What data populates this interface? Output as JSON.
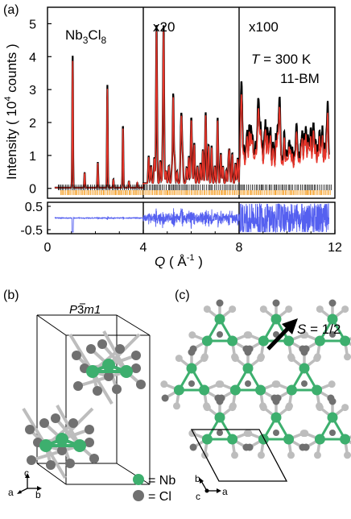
{
  "panel_a": {
    "label": "(a)",
    "segment_labels": [
      "Nb",
      "x20",
      "x100"
    ],
    "material_sub_3": "3",
    "material_cl": "Cl",
    "material_sub_8": "8",
    "annotation_t_symbol": "T",
    "annotation_t_value": " = 300 K",
    "annotation_beamline": "11-BM",
    "y_label_main": "Intensity ( 10",
    "y_label_exp": "4",
    "y_label_tail": " counts )",
    "x_label_q": "Q",
    "x_label_unit": " ( Å",
    "x_label_exp": "-1",
    "x_label_close": " )"
  },
  "panel_b": {
    "label": "(b)",
    "space_group_p": "P",
    "space_group_bar3": "3",
    "space_group_rest": "m1",
    "axis_c": "c",
    "axis_a": "a",
    "axis_b": "b",
    "legend_nb": "= Nb",
    "legend_cl": "= Cl"
  },
  "panel_c": {
    "label": "(c)",
    "spin_s": "S",
    "spin_value": " = 1/2",
    "axis_b": "b",
    "axis_c": "c",
    "axis_a": "a"
  },
  "colors": {
    "nb": "#3daf6e",
    "cl": "#707070",
    "cl_light": "#bdbdbd",
    "fit": "#e8352a",
    "difference": "#5560f0",
    "tick_black": "#000000",
    "tick_orange": "#f5a028"
  },
  "chart_data": {
    "type": "line",
    "title": "",
    "xlabel": "Q ( Å-1 )",
    "ylabel": "Intensity ( 10^4 counts )",
    "xlim": [
      0,
      12
    ],
    "ylim": [
      -0.3,
      5.5
    ],
    "x_ticks": [
      "0",
      "4",
      "8",
      "12"
    ],
    "y_ticks": [
      "0",
      "1",
      "2",
      "3",
      "4",
      "5"
    ],
    "scale_segments": [
      {
        "x_range": [
          0,
          4
        ],
        "label": "Nb3Cl8",
        "factor": 1
      },
      {
        "x_range": [
          4,
          8
        ],
        "label": "x20",
        "factor": 20
      },
      {
        "x_range": [
          8,
          12
        ],
        "label": "x100",
        "factor": 100
      }
    ],
    "series": [],
    "peaks_displayed": [
      {
        "x": 1.05,
        "y": 3.9
      },
      {
        "x": 1.55,
        "y": 0.45
      },
      {
        "x": 2.1,
        "y": 0.75
      },
      {
        "x": 2.5,
        "y": 3.0
      },
      {
        "x": 2.75,
        "y": 0.25
      },
      {
        "x": 3.15,
        "y": 1.85
      },
      {
        "x": 3.4,
        "y": 0.2
      },
      {
        "x": 3.75,
        "y": 0.15
      },
      {
        "x": 4.55,
        "y": 3.7
      },
      {
        "x": 4.85,
        "y": 4.35
      },
      {
        "x": 5.25,
        "y": 2.6
      },
      {
        "x": 5.6,
        "y": 1.55
      },
      {
        "x": 6.0,
        "y": 1.75
      },
      {
        "x": 6.6,
        "y": 1.6
      },
      {
        "x": 7.1,
        "y": 1.3
      },
      {
        "x": 7.6,
        "y": 0.8
      },
      {
        "x": 8.1,
        "y": 1.7
      },
      {
        "x": 8.8,
        "y": 1.55
      },
      {
        "x": 9.7,
        "y": 1.35
      },
      {
        "x": 10.4,
        "y": 1.1
      },
      {
        "x": 11.1,
        "y": 1.0
      },
      {
        "x": 11.7,
        "y": 0.6
      }
    ],
    "residual_panel": {
      "ylim": [
        -0.5,
        0.5
      ],
      "y_ticks": [
        "0.5",
        "-0.5"
      ]
    }
  }
}
